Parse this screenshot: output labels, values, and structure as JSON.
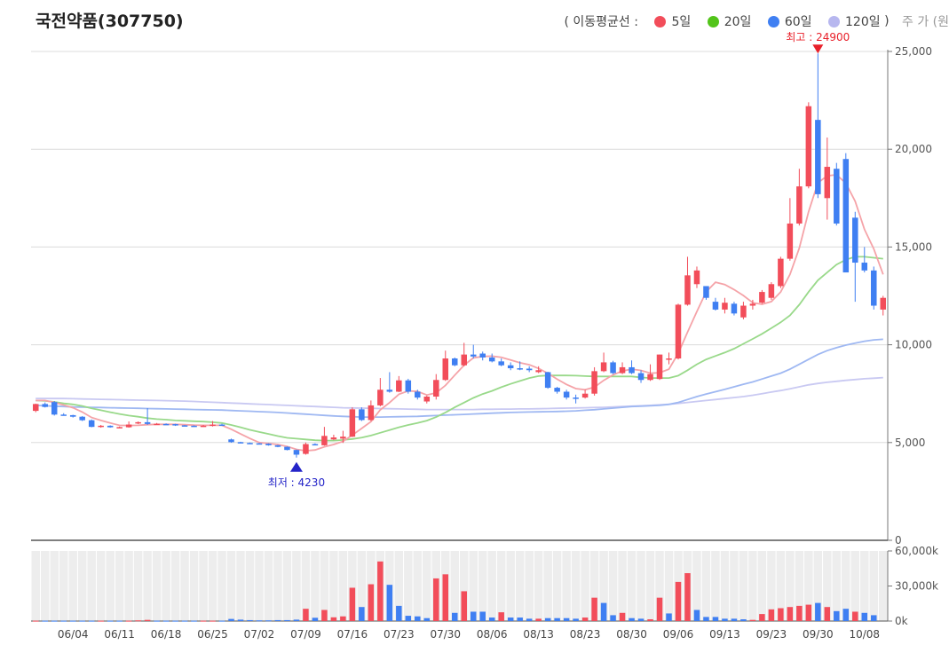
{
  "title": "국전약품(307750)",
  "legend": {
    "open": "( 이동평균선  :",
    "close": ")",
    "unit": "주 가 (원",
    "items": [
      {
        "label": "5일",
        "color": "#f24d5a"
      },
      {
        "label": "20일",
        "color": "#52c41a"
      },
      {
        "label": "60일",
        "color": "#3f7ff2"
      },
      {
        "label": "120일",
        "color": "#b7b7ef"
      }
    ]
  },
  "chart_data": {
    "type": "candlestick",
    "price_axis": {
      "min": 0,
      "max": 25000,
      "ticks": [
        "0",
        "5,000",
        "10,000",
        "15,000",
        "20,000",
        "25,000"
      ],
      "tick_values": [
        0,
        5000,
        10000,
        15000,
        20000,
        25000
      ]
    },
    "volume_axis": {
      "min": 0,
      "max": 60000,
      "ticks": [
        "0k",
        "30,000k",
        "60,000k"
      ],
      "tick_values": [
        0,
        30000,
        60000
      ]
    },
    "x_labels": [
      "06/04",
      "06/11",
      "06/18",
      "06/25",
      "07/02",
      "07/09",
      "07/16",
      "07/23",
      "07/30",
      "08/06",
      "08/13",
      "08/23",
      "08/30",
      "09/06",
      "09/13",
      "09/23",
      "09/30",
      "10/08"
    ],
    "x_label_index": [
      4,
      9,
      14,
      19,
      24,
      29,
      34,
      39,
      44,
      49,
      54,
      59,
      64,
      69,
      74,
      79,
      84,
      89
    ],
    "high_marker": {
      "label": "최고 : 24900",
      "value": 24900,
      "index": 84
    },
    "low_marker": {
      "label": "최저 : 4230",
      "value": 4230,
      "index": 28
    },
    "candles": [
      [
        6620,
        6970,
        6550,
        6990
      ],
      [
        6970,
        6820,
        6790,
        7050
      ],
      [
        7070,
        6430,
        6380,
        7120
      ],
      [
        6430,
        6400,
        6380,
        6500
      ],
      [
        6400,
        6320,
        6280,
        6420
      ],
      [
        6320,
        6140,
        6100,
        6350
      ],
      [
        6140,
        5800,
        5780,
        6180
      ],
      [
        5800,
        5860,
        5760,
        5900
      ],
      [
        5860,
        5780,
        5760,
        5880
      ],
      [
        5780,
        5790,
        5760,
        5820
      ],
      [
        5780,
        5920,
        5760,
        6080
      ],
      [
        6000,
        6040,
        5940,
        6080
      ],
      [
        6040,
        5950,
        5900,
        6760
      ],
      [
        5950,
        5960,
        5920,
        6000
      ],
      [
        5950,
        5940,
        5900,
        5980
      ],
      [
        5940,
        5880,
        5850,
        5960
      ],
      [
        5880,
        5860,
        5830,
        5900
      ],
      [
        5860,
        5820,
        5800,
        5880
      ],
      [
        5820,
        5860,
        5800,
        5900
      ],
      [
        5860,
        5920,
        5820,
        6100
      ],
      [
        5920,
        5880,
        5850,
        5960
      ],
      [
        5160,
        5020,
        4990,
        5200
      ],
      [
        5020,
        4980,
        4960,
        5040
      ],
      [
        4980,
        4960,
        4940,
        5000
      ],
      [
        4960,
        4940,
        4920,
        4980
      ],
      [
        4940,
        4860,
        4840,
        4960
      ],
      [
        4860,
        4780,
        4760,
        4880
      ],
      [
        4780,
        4620,
        4600,
        4800
      ],
      [
        4620,
        4380,
        4230,
        4640
      ],
      [
        4420,
        4920,
        4380,
        5000
      ],
      [
        4920,
        4910,
        4880,
        4960
      ],
      [
        4860,
        5340,
        4840,
        5800
      ],
      [
        5160,
        5260,
        5120,
        5400
      ],
      [
        5200,
        5300,
        4980,
        5600
      ],
      [
        5300,
        6700,
        5280,
        6800
      ],
      [
        6700,
        6150,
        6100,
        6800
      ],
      [
        6150,
        6900,
        6100,
        7150
      ],
      [
        6900,
        7700,
        6850,
        8300
      ],
      [
        7700,
        7600,
        7550,
        8600
      ],
      [
        7600,
        8180,
        7580,
        8400
      ],
      [
        8180,
        7600,
        7500,
        8260
      ],
      [
        7600,
        7300,
        7200,
        7700
      ],
      [
        7100,
        7350,
        7000,
        7400
      ],
      [
        7350,
        8200,
        7200,
        8500
      ],
      [
        8200,
        9300,
        8150,
        9700
      ],
      [
        9300,
        8950,
        8900,
        9350
      ],
      [
        8950,
        9500,
        8900,
        10100
      ],
      [
        9500,
        9400,
        9300,
        10000
      ],
      [
        9550,
        9350,
        9200,
        9650
      ],
      [
        9350,
        9150,
        9100,
        9550
      ],
      [
        9150,
        8950,
        8900,
        9300
      ],
      [
        8950,
        8800,
        8700,
        9100
      ],
      [
        8800,
        8780,
        8700,
        9150
      ],
      [
        8780,
        8700,
        8600,
        8900
      ],
      [
        8600,
        8700,
        8550,
        8900
      ],
      [
        8600,
        7800,
        7750,
        8620
      ],
      [
        7800,
        7600,
        7500,
        7850
      ],
      [
        7600,
        7300,
        7200,
        7700
      ],
      [
        7300,
        7250,
        7000,
        7450
      ],
      [
        7300,
        7500,
        7250,
        7700
      ],
      [
        7500,
        8650,
        7400,
        8850
      ],
      [
        8650,
        9100,
        8600,
        9600
      ],
      [
        9100,
        8550,
        8500,
        9180
      ],
      [
        8550,
        8850,
        8500,
        9100
      ],
      [
        8850,
        8550,
        8500,
        9200
      ],
      [
        8550,
        8200,
        8050,
        8700
      ],
      [
        8200,
        8500,
        8150,
        9000
      ],
      [
        8250,
        9500,
        8200,
        9500
      ],
      [
        9250,
        9300,
        9000,
        9600
      ],
      [
        9300,
        12050,
        9250,
        12100
      ],
      [
        12050,
        13550,
        12000,
        14500
      ],
      [
        13100,
        13800,
        12900,
        14000
      ],
      [
        13000,
        12400,
        12300,
        13000
      ],
      [
        12200,
        11800,
        11750,
        12400
      ],
      [
        11800,
        12150,
        11600,
        12400
      ],
      [
        12100,
        11600,
        11500,
        12200
      ],
      [
        11400,
        12000,
        11300,
        12200
      ],
      [
        12000,
        12100,
        11800,
        12300
      ],
      [
        12150,
        12700,
        12100,
        12800
      ],
      [
        12400,
        13100,
        12300,
        13200
      ],
      [
        13000,
        14400,
        12900,
        14500
      ],
      [
        14400,
        16200,
        14300,
        17500
      ],
      [
        16200,
        18100,
        16100,
        19000
      ],
      [
        18100,
        22200,
        18000,
        22400
      ],
      [
        21500,
        17700,
        17500,
        24900
      ],
      [
        17500,
        19100,
        16400,
        20600
      ],
      [
        19000,
        16200,
        16100,
        19300
      ],
      [
        19500,
        13700,
        13700,
        19800
      ],
      [
        16500,
        14200,
        12200,
        16800
      ],
      [
        14200,
        13800,
        13700,
        15000
      ],
      [
        13800,
        12000,
        11800,
        14000
      ],
      [
        11800,
        12400,
        11500,
        12500
      ]
    ],
    "volumes": [
      [
        0.3,
        "up"
      ],
      [
        0.3,
        "dn"
      ],
      [
        0.3,
        "dn"
      ],
      [
        0.3,
        "dn"
      ],
      [
        0.3,
        "dn"
      ],
      [
        0.3,
        "dn"
      ],
      [
        0.3,
        "dn"
      ],
      [
        0.3,
        "up"
      ],
      [
        0.3,
        "dn"
      ],
      [
        0.3,
        "dn"
      ],
      [
        0.3,
        "up"
      ],
      [
        0.6,
        "up"
      ],
      [
        1.0,
        "up"
      ],
      [
        0.3,
        "dn"
      ],
      [
        0.3,
        "dn"
      ],
      [
        0.3,
        "dn"
      ],
      [
        0.3,
        "dn"
      ],
      [
        0.3,
        "dn"
      ],
      [
        0.3,
        "up"
      ],
      [
        0.3,
        "up"
      ],
      [
        0.3,
        "dn"
      ],
      [
        1.8,
        "dn"
      ],
      [
        1.2,
        "dn"
      ],
      [
        0.8,
        "dn"
      ],
      [
        0.6,
        "dn"
      ],
      [
        0.6,
        "dn"
      ],
      [
        0.8,
        "dn"
      ],
      [
        0.8,
        "dn"
      ],
      [
        1.2,
        "dn"
      ],
      [
        10.5,
        "up"
      ],
      [
        2.8,
        "dn"
      ],
      [
        9.5,
        "up"
      ],
      [
        3.2,
        "up"
      ],
      [
        4.0,
        "up"
      ],
      [
        28.5,
        "up"
      ],
      [
        12.0,
        "dn"
      ],
      [
        31.5,
        "up"
      ],
      [
        51.0,
        "up"
      ],
      [
        31.0,
        "dn"
      ],
      [
        13.0,
        "dn"
      ],
      [
        4.5,
        "dn"
      ],
      [
        4.0,
        "dn"
      ],
      [
        2.5,
        "dn"
      ],
      [
        36.5,
        "up"
      ],
      [
        40.0,
        "up"
      ],
      [
        7.0,
        "dn"
      ],
      [
        25.5,
        "up"
      ],
      [
        8.0,
        "dn"
      ],
      [
        8.0,
        "dn"
      ],
      [
        3.0,
        "dn"
      ],
      [
        7.5,
        "up"
      ],
      [
        3.0,
        "dn"
      ],
      [
        3.0,
        "dn"
      ],
      [
        2.0,
        "dn"
      ],
      [
        2.0,
        "up"
      ],
      [
        2.5,
        "dn"
      ],
      [
        2.5,
        "dn"
      ],
      [
        2.5,
        "dn"
      ],
      [
        2.0,
        "dn"
      ],
      [
        3.0,
        "up"
      ],
      [
        20.0,
        "up"
      ],
      [
        15.5,
        "dn"
      ],
      [
        5.0,
        "dn"
      ],
      [
        7.0,
        "up"
      ],
      [
        2.5,
        "dn"
      ],
      [
        2.0,
        "dn"
      ],
      [
        1.5,
        "up"
      ],
      [
        20.0,
        "up"
      ],
      [
        6.5,
        "dn"
      ],
      [
        33.5,
        "up"
      ],
      [
        41.0,
        "up"
      ],
      [
        9.5,
        "dn"
      ],
      [
        3.5,
        "dn"
      ],
      [
        3.5,
        "dn"
      ],
      [
        2.0,
        "dn"
      ],
      [
        2.0,
        "dn"
      ],
      [
        1.5,
        "dn"
      ],
      [
        1.0,
        "up"
      ],
      [
        6.0,
        "up"
      ],
      [
        10.0,
        "up"
      ],
      [
        11.0,
        "up"
      ],
      [
        12.0,
        "up"
      ],
      [
        13.0,
        "up"
      ],
      [
        14.0,
        "up"
      ],
      [
        15.5,
        "dn"
      ],
      [
        12.0,
        "up"
      ],
      [
        8.5,
        "dn"
      ],
      [
        10.5,
        "dn"
      ],
      [
        8.0,
        "up"
      ],
      [
        7.0,
        "dn"
      ],
      [
        5.0,
        "dn"
      ]
    ],
    "ma5": [
      7150,
      7150,
      7050,
      6920,
      6780,
      6560,
      6280,
      6130,
      6000,
      5880,
      5870,
      5880,
      5910,
      5930,
      5930,
      5930,
      5910,
      5890,
      5880,
      5880,
      5880,
      5680,
      5440,
      5210,
      5000,
      4950,
      4900,
      4800,
      4650,
      4580,
      4620,
      4780,
      4900,
      5060,
      5380,
      5720,
      6070,
      6670,
      7040,
      7470,
      7640,
      7620,
      7430,
      7540,
      7920,
      8450,
      8950,
      9330,
      9400,
      9420,
      9360,
      9220,
      9080,
      8980,
      8790,
      8540,
      8240,
      7970,
      7760,
      7700,
      7830,
      8180,
      8460,
      8660,
      8750,
      8690,
      8550,
      8570,
      8750,
      9560,
      10650,
      11700,
      12710,
      13200,
      13080,
      12820,
      12520,
      12150,
      12070,
      12210,
      12700,
      13600,
      14950,
      16800,
      18280,
      18640,
      18700,
      18260,
      17340,
      15900,
      14900,
      13600
    ],
    "ma20": [
      7150,
      7130,
      7080,
      7000,
      6950,
      6870,
      6750,
      6650,
      6550,
      6460,
      6380,
      6320,
      6250,
      6200,
      6170,
      6130,
      6110,
      6090,
      6070,
      6040,
      6000,
      5900,
      5780,
      5650,
      5540,
      5440,
      5330,
      5240,
      5200,
      5160,
      5120,
      5100,
      5100,
      5130,
      5180,
      5250,
      5360,
      5500,
      5640,
      5780,
      5900,
      6000,
      6120,
      6300,
      6540,
      6800,
      7040,
      7280,
      7480,
      7640,
      7830,
      8000,
      8150,
      8300,
      8400,
      8430,
      8430,
      8430,
      8420,
      8400,
      8380,
      8380,
      8380,
      8380,
      8380,
      8330,
      8300,
      8300,
      8300,
      8420,
      8700,
      9000,
      9250,
      9430,
      9600,
      9800,
      10050,
      10300,
      10560,
      10850,
      11150,
      11500,
      12050,
      12700,
      13300,
      13700,
      14100,
      14350,
      14500,
      14500,
      14450,
      14400
    ],
    "ma60": [
      6900,
      6880,
      6860,
      6840,
      6820,
      6810,
      6800,
      6790,
      6780,
      6770,
      6760,
      6750,
      6740,
      6730,
      6720,
      6710,
      6700,
      6690,
      6680,
      6670,
      6660,
      6640,
      6620,
      6600,
      6580,
      6560,
      6540,
      6510,
      6480,
      6450,
      6420,
      6390,
      6360,
      6340,
      6320,
      6300,
      6300,
      6300,
      6310,
      6320,
      6330,
      6340,
      6360,
      6380,
      6400,
      6420,
      6440,
      6460,
      6480,
      6500,
      6520,
      6540,
      6550,
      6560,
      6570,
      6580,
      6590,
      6600,
      6620,
      6650,
      6680,
      6720,
      6760,
      6800,
      6840,
      6860,
      6880,
      6900,
      6950,
      7050,
      7200,
      7350,
      7480,
      7600,
      7720,
      7850,
      7980,
      8100,
      8250,
      8400,
      8550,
      8750,
      9000,
      9250,
      9500,
      9700,
      9850,
      9980,
      10080,
      10180,
      10250,
      10280
    ],
    "ma120": [
      7250,
      7250,
      7250,
      7250,
      7240,
      7230,
      7220,
      7210,
      7200,
      7190,
      7180,
      7170,
      7160,
      7150,
      7140,
      7130,
      7120,
      7100,
      7080,
      7060,
      7040,
      7020,
      7000,
      6980,
      6960,
      6940,
      6920,
      6900,
      6880,
      6860,
      6840,
      6820,
      6800,
      6780,
      6770,
      6760,
      6750,
      6740,
      6730,
      6720,
      6710,
      6700,
      6690,
      6690,
      6690,
      6690,
      6690,
      6690,
      6700,
      6700,
      6710,
      6710,
      6720,
      6720,
      6730,
      6740,
      6750,
      6760,
      6770,
      6780,
      6790,
      6800,
      6820,
      6840,
      6860,
      6880,
      6900,
      6930,
      6960,
      7000,
      7050,
      7100,
      7150,
      7200,
      7250,
      7300,
      7350,
      7420,
      7500,
      7580,
      7660,
      7750,
      7850,
      7950,
      8020,
      8080,
      8130,
      8180,
      8220,
      8260,
      8290,
      8320
    ]
  }
}
